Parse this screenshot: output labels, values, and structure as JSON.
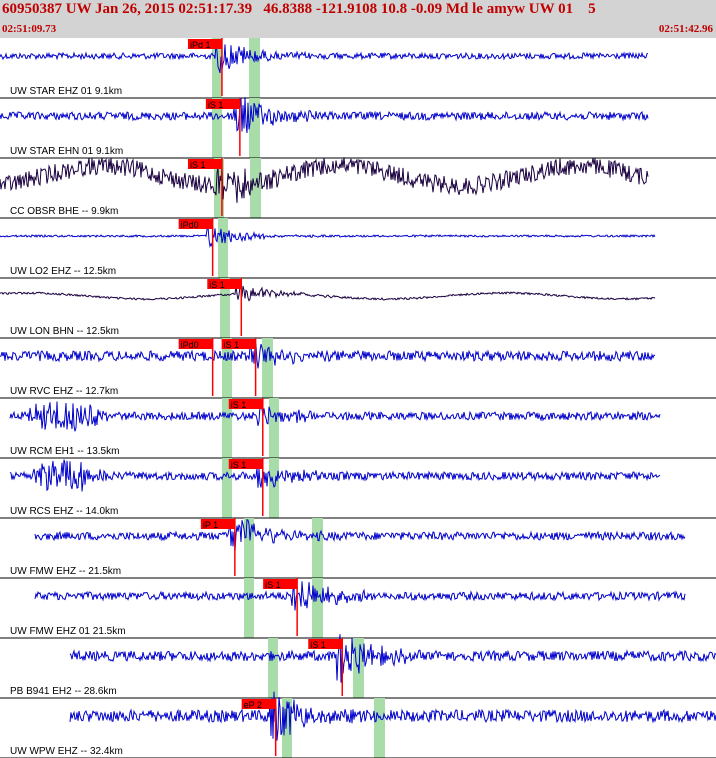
{
  "header": {
    "title": "60950387 UW Jan 26, 2015 02:51:17.39   46.8388 -121.9108 10.8 -0.09 Md le amyw UW 01    5",
    "start_time": "02:51:09.73",
    "end_time": "02:51:42.96"
  },
  "chart_data": {
    "type": "line",
    "title": "60950387 UW Jan 26, 2015 02:51:17.39   46.8388 -121.9108 10.8 -0.09 Md le amyw UW 01    5",
    "x_start": "02:51:09.73",
    "x_end": "02:51:42.96",
    "colors": {
      "vertical": "#0000cc",
      "horizontal": "#1a0040",
      "pick": "#ff0000",
      "window": "#a8dca8",
      "background": "#ffffff",
      "header": "#d3d3d3"
    },
    "traces": [
      {
        "label": "UW STAR EHZ 01 9.1km",
        "color": "#0000cc",
        "picks": [
          {
            "label": "iPd 1",
            "t": 0.31
          }
        ]
      },
      {
        "label": "UW STAR EHN 01 9.1km",
        "color": "#0000cc",
        "picks": [
          {
            "label": "iS 1",
            "t": 0.335
          }
        ]
      },
      {
        "label": "CC OBSR BHE -- 9.9km",
        "color": "#1a0040",
        "picks": [
          {
            "label": "iS 1",
            "t": 0.31
          }
        ]
      },
      {
        "label": "UW LO2 EHZ -- 12.5km",
        "color": "#0000cc",
        "picks": [
          {
            "label": "iPd0",
            "t": 0.297
          }
        ]
      },
      {
        "label": "UW LON BHN -- 12.5km",
        "color": "#1a0040",
        "picks": [
          {
            "label": "iS 1",
            "t": 0.337
          }
        ]
      },
      {
        "label": "UW RVC EHZ -- 12.7km",
        "color": "#0000cc",
        "picks": [
          {
            "label": "iPd0",
            "t": 0.297
          },
          {
            "label": "iS 1",
            "t": 0.357
          }
        ]
      },
      {
        "label": "UW RCM EH1 -- 13.5km",
        "color": "#0000cc",
        "picks": [
          {
            "label": "iS 1",
            "t": 0.367
          }
        ]
      },
      {
        "label": "UW RCS EHZ -- 14.0km",
        "color": "#0000cc",
        "picks": [
          {
            "label": "iS 1",
            "t": 0.367
          }
        ]
      },
      {
        "label": "UW FMW EHZ -- 21.5km",
        "color": "#0000cc",
        "picks": [
          {
            "label": "iP 1",
            "t": 0.328
          }
        ]
      },
      {
        "label": "UW FMW EHZ 01 21.5km",
        "color": "#0000cc",
        "picks": [
          {
            "label": "iS 1",
            "t": 0.415
          }
        ]
      },
      {
        "label": "PB B941 EH2 -- 28.6km",
        "color": "#0000cc",
        "picks": [
          {
            "label": "iS 1",
            "t": 0.478
          }
        ]
      },
      {
        "label": "UW WPW EHZ -- 32.4km",
        "color": "#0000cc",
        "picks": [
          {
            "label": "eP 2",
            "t": 0.385
          }
        ]
      }
    ]
  }
}
